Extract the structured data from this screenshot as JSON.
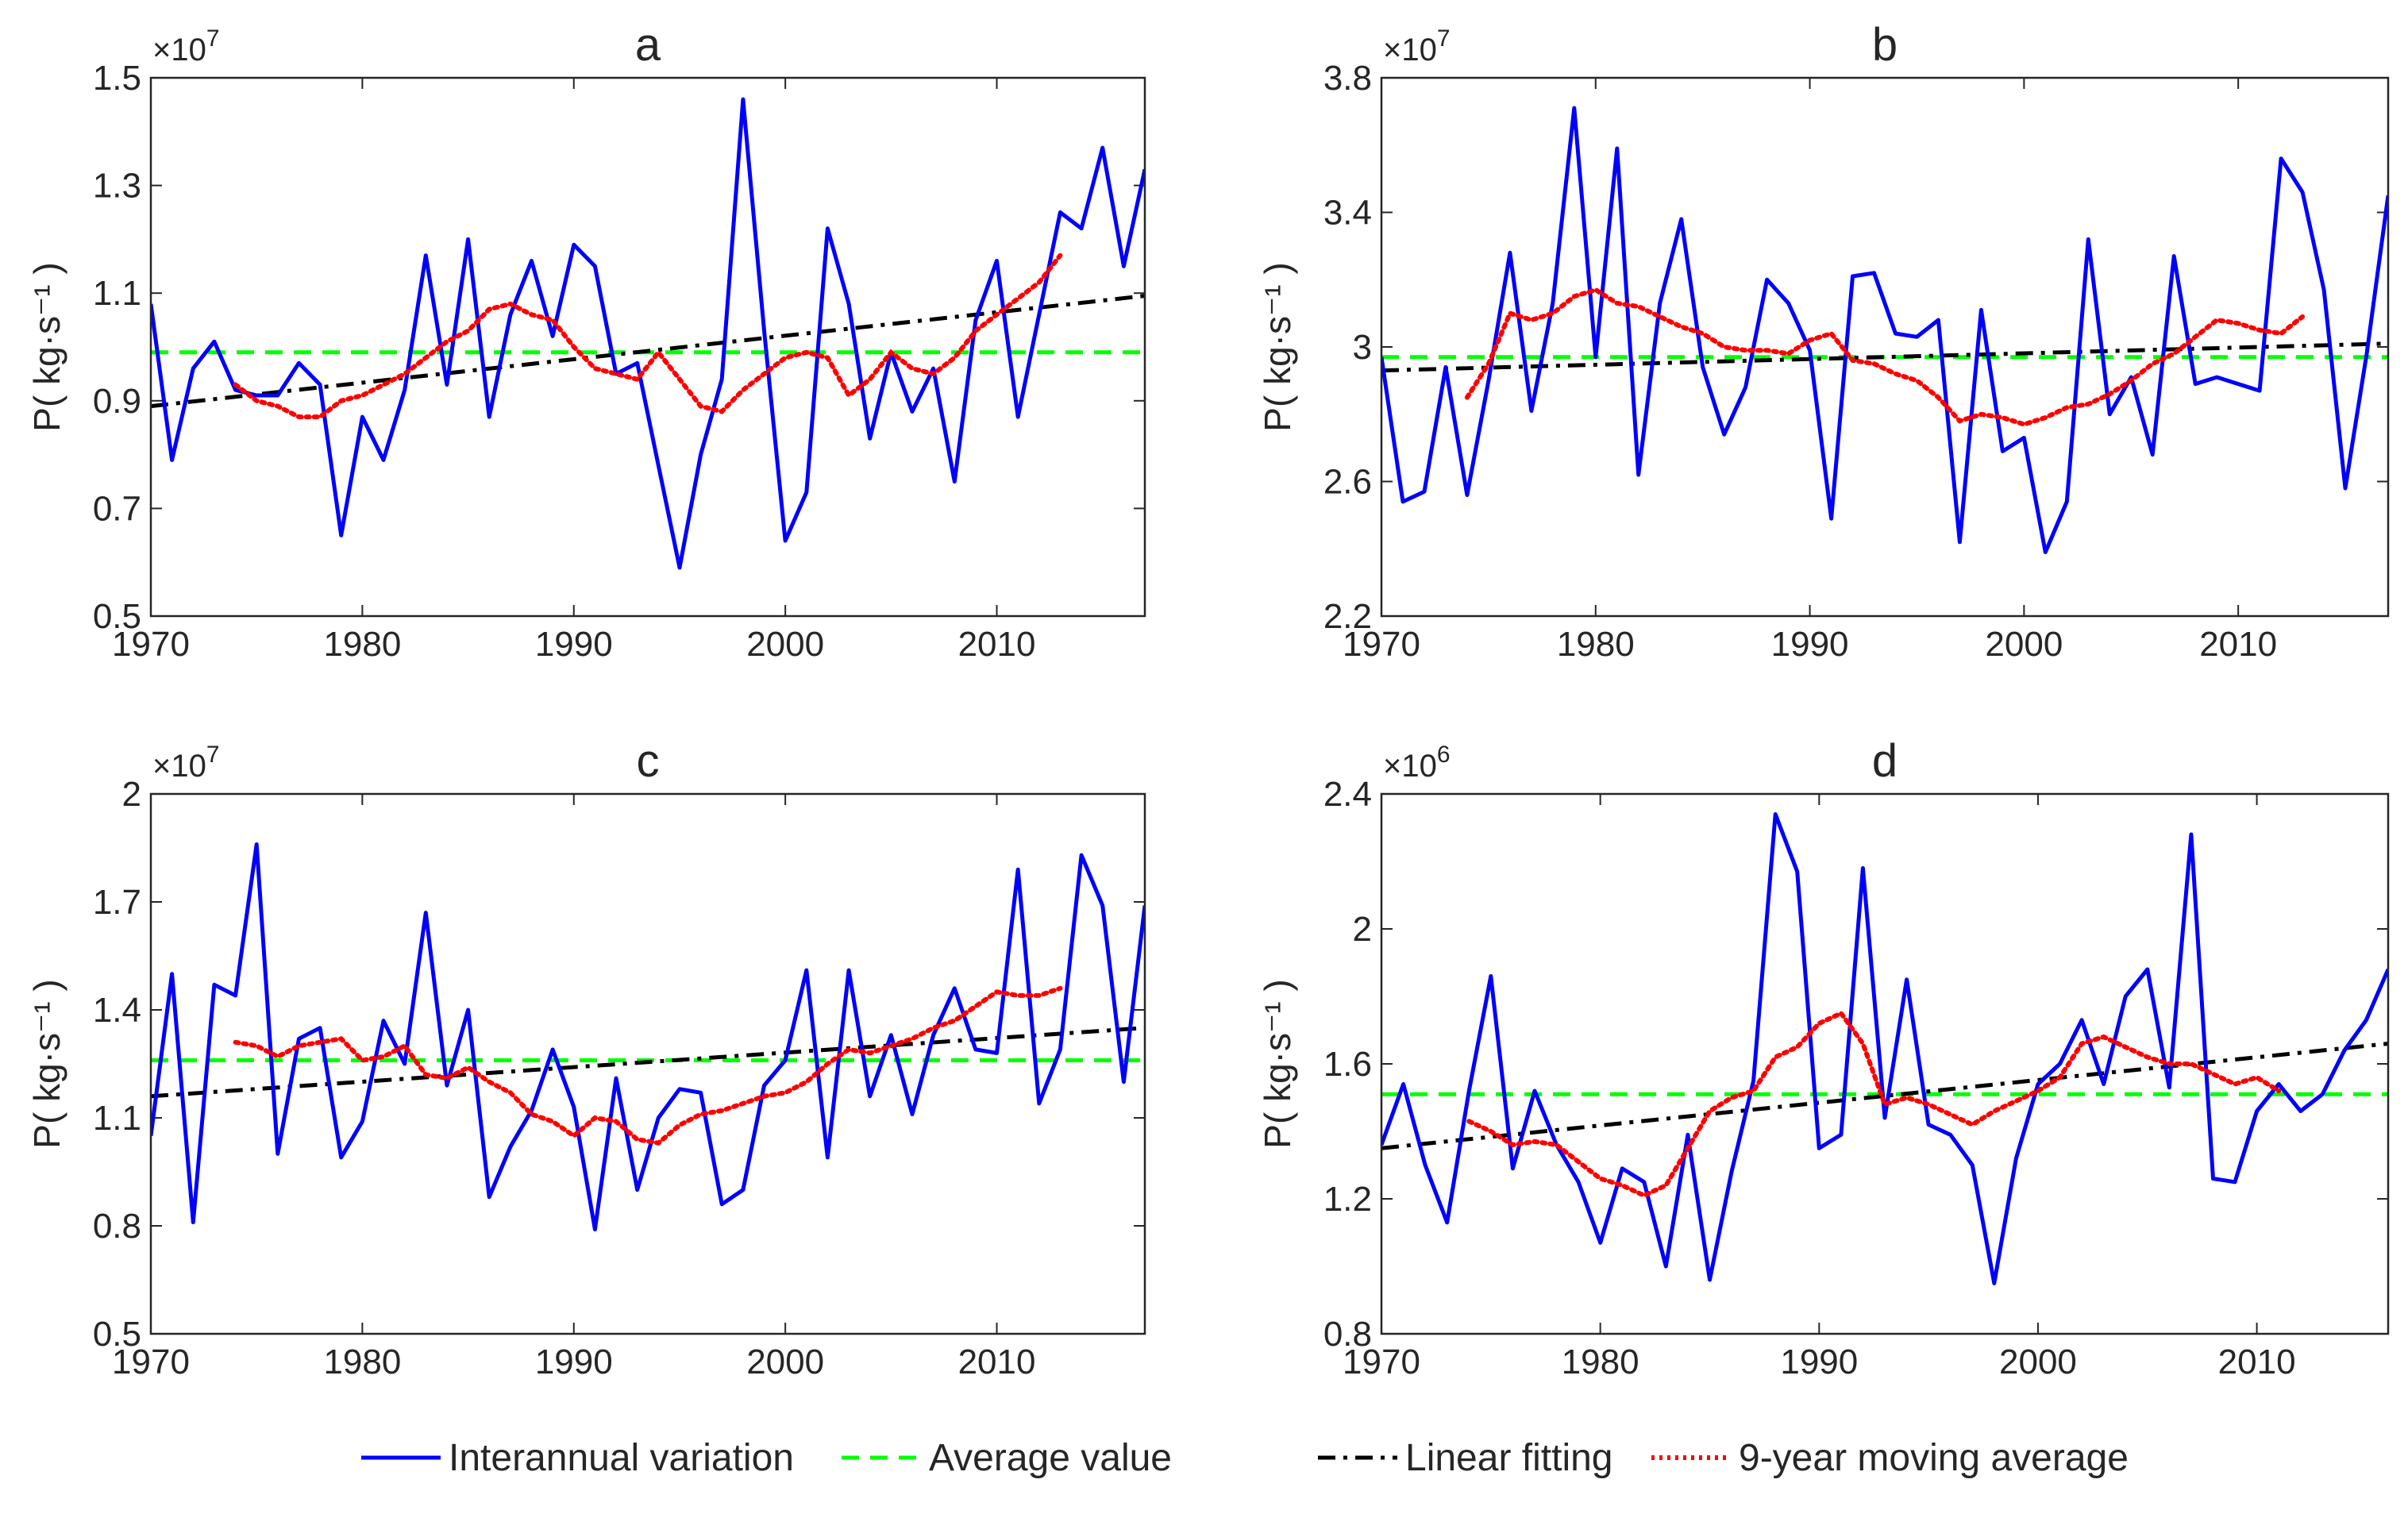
{
  "colors": {
    "interannual": "#0000ff",
    "average": "#00ff00",
    "linear": "#000000",
    "moving": "#ff0000",
    "axis": "#262626"
  },
  "legend": {
    "items": [
      {
        "key": "interannual",
        "label": "Interannual variation",
        "style": "solid"
      },
      {
        "key": "average",
        "label": "Average value",
        "style": "dashed"
      },
      {
        "key": "linear",
        "label": "Linear fitting",
        "style": "dashdot"
      },
      {
        "key": "moving",
        "label": "9-year moving average",
        "style": "dotted"
      }
    ]
  },
  "chart_data": [
    {
      "type": "line",
      "title": "a",
      "ylabel": "P( kg·s⁻¹ )",
      "exponent_base": "×10",
      "exponent": "7",
      "xlim": [
        1970,
        2017
      ],
      "ylim": [
        0.5,
        1.5
      ],
      "xticks": [
        "1970",
        "1980",
        "1990",
        "2000",
        "2010"
      ],
      "yticks": [
        "0.5",
        "0.7",
        "0.9",
        "1.1",
        "1.3",
        "1.5"
      ],
      "x_start": 1970,
      "interannual": [
        1.08,
        0.79,
        0.96,
        1.01,
        0.92,
        0.91,
        0.91,
        0.97,
        0.93,
        0.65,
        0.87,
        0.79,
        0.92,
        1.17,
        0.93,
        1.2,
        0.87,
        1.06,
        1.16,
        1.02,
        1.19,
        1.15,
        0.95,
        0.97,
        0.78,
        0.59,
        0.8,
        0.94,
        1.46,
        1.03,
        0.64,
        0.73,
        1.22,
        1.08,
        0.83,
        0.99,
        0.88,
        0.96,
        0.75,
        1.05,
        1.16,
        0.87,
        1.06,
        1.25,
        1.22,
        1.37,
        1.15,
        1.33
      ],
      "average": 0.99,
      "linear": {
        "x": [
          1970,
          2017
        ],
        "y": [
          0.89,
          1.095
        ]
      },
      "moving_average": {
        "x_start": 1974,
        "values": [
          0.93,
          0.9,
          0.89,
          0.87,
          0.87,
          0.9,
          0.91,
          0.93,
          0.95,
          0.98,
          1.01,
          1.03,
          1.07,
          1.08,
          1.06,
          1.05,
          1.0,
          0.96,
          0.95,
          0.94,
          0.99,
          0.94,
          0.89,
          0.88,
          0.92,
          0.95,
          0.98,
          0.99,
          0.98,
          0.91,
          0.94,
          0.99,
          0.96,
          0.95,
          0.98,
          1.03,
          1.06,
          1.09,
          1.12,
          1.17
        ]
      }
    },
    {
      "type": "line",
      "title": "b",
      "ylabel": "P( kg·s⁻¹ )",
      "exponent_base": "×10",
      "exponent": "7",
      "xlim": [
        1970,
        2017
      ],
      "ylim": [
        2.2,
        3.8
      ],
      "xticks": [
        "1970",
        "1980",
        "1990",
        "2000",
        "2010"
      ],
      "yticks": [
        "2.2",
        "2.6",
        "3",
        "3.4",
        "3.8"
      ],
      "x_start": 1970,
      "interannual": [
        2.97,
        2.54,
        2.57,
        2.94,
        2.56,
        2.9,
        3.28,
        2.81,
        3.13,
        3.71,
        2.97,
        3.59,
        2.62,
        3.13,
        3.38,
        2.94,
        2.74,
        2.88,
        3.2,
        3.13,
        2.99,
        2.49,
        3.21,
        3.22,
        3.04,
        3.03,
        3.08,
        2.42,
        3.11,
        2.69,
        2.73,
        2.39,
        2.54,
        3.32,
        2.8,
        2.91,
        2.68,
        3.27,
        2.89,
        2.91,
        2.89,
        2.87,
        3.56,
        3.46,
        3.17,
        2.58,
        2.98,
        3.45
      ],
      "average": 2.97,
      "linear": {
        "x": [
          1970,
          2017
        ],
        "y": [
          2.93,
          3.01
        ]
      },
      "moving_average": {
        "x_start": 1974,
        "values": [
          2.85,
          2.95,
          3.1,
          3.08,
          3.1,
          3.15,
          3.17,
          3.13,
          3.12,
          3.09,
          3.06,
          3.04,
          3.0,
          2.99,
          2.99,
          2.98,
          3.02,
          3.04,
          2.96,
          2.95,
          2.92,
          2.9,
          2.85,
          2.78,
          2.8,
          2.79,
          2.77,
          2.79,
          2.82,
          2.83,
          2.86,
          2.9,
          2.95,
          2.98,
          3.03,
          3.08,
          3.07,
          3.05,
          3.04,
          3.09
        ]
      }
    },
    {
      "type": "line",
      "title": "c",
      "ylabel": "P( kg·s⁻¹ )",
      "exponent_base": "×10",
      "exponent": "7",
      "xlim": [
        1970,
        2017
      ],
      "ylim": [
        0.5,
        2.0
      ],
      "xticks": [
        "1970",
        "1980",
        "1990",
        "2000",
        "2010"
      ],
      "yticks": [
        "0.5",
        "0.8",
        "1.1",
        "1.4",
        "1.7",
        "2"
      ],
      "x_start": 1970,
      "interannual": [
        1.05,
        1.5,
        0.81,
        1.47,
        1.44,
        1.86,
        1.0,
        1.32,
        1.35,
        0.99,
        1.09,
        1.37,
        1.25,
        1.67,
        1.19,
        1.4,
        0.88,
        1.02,
        1.12,
        1.29,
        1.13,
        0.79,
        1.21,
        0.9,
        1.1,
        1.18,
        1.17,
        0.86,
        0.9,
        1.19,
        1.26,
        1.51,
        0.99,
        1.51,
        1.16,
        1.33,
        1.11,
        1.33,
        1.46,
        1.29,
        1.28,
        1.79,
        1.14,
        1.29,
        1.83,
        1.69,
        1.2,
        1.69
      ],
      "average": 1.26,
      "linear": {
        "x": [
          1970,
          2017
        ],
        "y": [
          1.16,
          1.35
        ]
      },
      "moving_average": {
        "x_start": 1974,
        "values": [
          1.31,
          1.3,
          1.27,
          1.3,
          1.31,
          1.32,
          1.26,
          1.27,
          1.3,
          1.22,
          1.21,
          1.24,
          1.2,
          1.17,
          1.11,
          1.09,
          1.05,
          1.1,
          1.09,
          1.04,
          1.03,
          1.08,
          1.11,
          1.12,
          1.14,
          1.16,
          1.17,
          1.2,
          1.25,
          1.29,
          1.28,
          1.3,
          1.32,
          1.35,
          1.37,
          1.41,
          1.45,
          1.44,
          1.44,
          1.46
        ]
      }
    },
    {
      "type": "line",
      "title": "d",
      "ylabel": "P( kg·s⁻¹ )",
      "exponent_base": "×10",
      "exponent": "6",
      "xlim": [
        1970,
        2016
      ],
      "ylim": [
        0.8,
        2.4
      ],
      "xticks": [
        "1970",
        "1980",
        "1990",
        "2000",
        "2010"
      ],
      "yticks": [
        "0.8",
        "1.2",
        "1.6",
        "2",
        "2.4"
      ],
      "x_start": 1970,
      "interannual": [
        1.36,
        1.54,
        1.3,
        1.13,
        1.52,
        1.86,
        1.29,
        1.52,
        1.36,
        1.25,
        1.07,
        1.29,
        1.25,
        1.0,
        1.39,
        0.96,
        1.28,
        1.55,
        2.34,
        2.17,
        1.35,
        1.39,
        2.18,
        1.44,
        1.85,
        1.42,
        1.39,
        1.3,
        0.95,
        1.32,
        1.54,
        1.6,
        1.73,
        1.54,
        1.8,
        1.88,
        1.53,
        2.28,
        1.26,
        1.25,
        1.46,
        1.54,
        1.46,
        1.51,
        1.64,
        1.73,
        1.88
      ],
      "average": 1.51,
      "linear": {
        "x": [
          1970,
          2016
        ],
        "y": [
          1.35,
          1.66
        ]
      },
      "moving_average": {
        "x_start": 1974,
        "values": [
          1.43,
          1.4,
          1.36,
          1.37,
          1.36,
          1.31,
          1.26,
          1.24,
          1.21,
          1.24,
          1.35,
          1.46,
          1.5,
          1.52,
          1.62,
          1.65,
          1.72,
          1.75,
          1.66,
          1.48,
          1.5,
          1.48,
          1.45,
          1.42,
          1.46,
          1.49,
          1.52,
          1.56,
          1.66,
          1.68,
          1.65,
          1.62,
          1.6,
          1.6,
          1.57,
          1.54,
          1.56,
          1.52
        ]
      }
    }
  ]
}
